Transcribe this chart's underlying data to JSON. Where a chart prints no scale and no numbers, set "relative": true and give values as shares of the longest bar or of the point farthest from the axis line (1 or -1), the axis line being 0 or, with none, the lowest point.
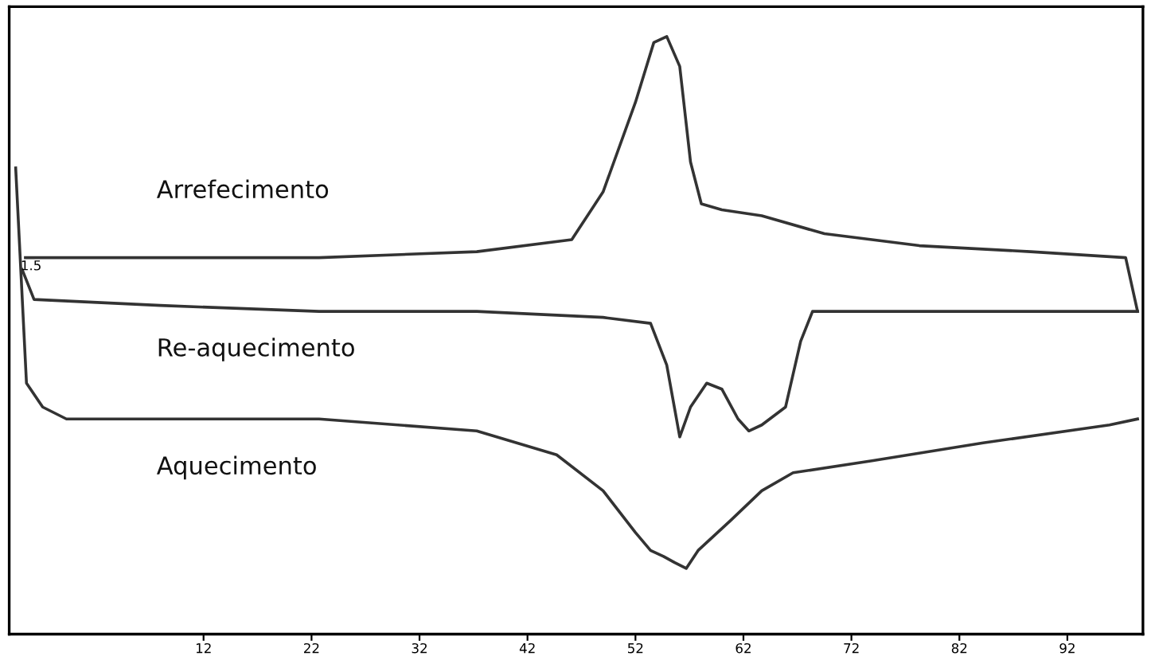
{
  "chart_data": {
    "type": "line",
    "relative": true,
    "tick_labels": "x",
    "xlim": [
      -6,
      99
    ],
    "xticks": [
      12,
      22,
      32,
      42,
      52,
      62,
      72,
      82,
      92
    ],
    "annotations": [
      "1.5"
    ],
    "series": [
      {
        "name": "Arrefecimento",
        "color": "#333333",
        "x": [
          -4.5,
          8.0,
          22.7,
          37.3,
          46.1,
          49.0,
          52.0,
          53.7,
          54.9,
          56.1,
          57.1,
          58.1,
          60.0,
          63.7,
          69.5,
          78.3,
          88.6,
          97.4,
          98.5
        ],
        "values": [
          0.63,
          0.63,
          0.63,
          0.64,
          0.66,
          0.74,
          0.89,
          0.99,
          1.0,
          0.95,
          0.79,
          0.72,
          0.71,
          0.7,
          0.67,
          0.65,
          0.64,
          0.63,
          0.54
        ]
      },
      {
        "name": "Re-aquecimento",
        "color": "#333333",
        "x": [
          -4.8,
          -3.7,
          8.0,
          22.7,
          37.3,
          49.0,
          53.4,
          54.9,
          56.1,
          57.1,
          58.6,
          60.0,
          61.5,
          62.5,
          63.7,
          65.9,
          67.3,
          68.4,
          72.5,
          88.6,
          98.5
        ],
        "values": [
          0.61,
          0.56,
          0.55,
          0.54,
          0.54,
          0.53,
          0.52,
          0.45,
          0.33,
          0.38,
          0.42,
          0.41,
          0.36,
          0.34,
          0.35,
          0.38,
          0.49,
          0.54,
          0.54,
          0.54,
          0.54
        ]
      },
      {
        "name": "Aquecimento",
        "color": "#333333",
        "x": [
          -5.4,
          -4.4,
          -2.9,
          -0.7,
          8.0,
          22.7,
          37.3,
          44.7,
          49.0,
          52.0,
          53.4,
          54.6,
          55.6,
          56.7,
          57.8,
          60.8,
          63.7,
          66.6,
          73.9,
          84.2,
          95.9,
          98.5
        ],
        "values": [
          0.78,
          0.42,
          0.38,
          0.36,
          0.36,
          0.36,
          0.34,
          0.3,
          0.24,
          0.17,
          0.14,
          0.13,
          0.12,
          0.11,
          0.14,
          0.19,
          0.24,
          0.27,
          0.29,
          0.32,
          0.35,
          0.36
        ]
      }
    ]
  }
}
